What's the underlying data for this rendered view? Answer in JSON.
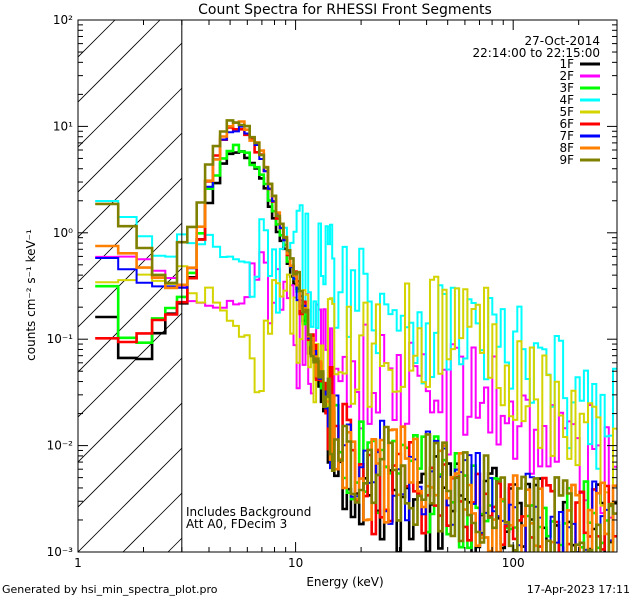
{
  "chart_data": {
    "type": "line",
    "title": "Count Spectra for RHESSI Front Segments",
    "xlabel": "Energy (keV)",
    "ylabel_text": "counts cm⁻² s⁻¹ keV⁻¹",
    "x_scale": "log",
    "y_scale": "log",
    "xlim": [
      1.0,
      300.0
    ],
    "ylim": [
      0.001,
      100.0
    ],
    "x_tick_labels": [
      {
        "value": 1,
        "label": "1"
      },
      {
        "value": 10,
        "label": "10"
      },
      {
        "value": 100,
        "label": "100"
      }
    ],
    "y_tick_labels": [
      {
        "value": 100,
        "label": "10²"
      },
      {
        "value": 10,
        "label": "10¹"
      },
      {
        "value": 1,
        "label": "10⁰"
      },
      {
        "value": 0.1,
        "label": "10⁻¹"
      },
      {
        "value": 0.01,
        "label": "10⁻²"
      },
      {
        "value": 0.001,
        "label": "10⁻³"
      }
    ],
    "hatched_region_max_energy": 3.0,
    "date": "27-Oct-2014",
    "time_range": "22:14:00 to 22:15:00",
    "annotations": [
      "Includes Background",
      "Att A0, FDecim 3"
    ],
    "legend_position": "top-right",
    "series": [
      {
        "name": "1F",
        "color": "#000000",
        "shape": "low",
        "values": [
          [
            1.2,
            0.22
          ],
          [
            1.5,
            0.12
          ],
          [
            1.8,
            0.042
          ],
          [
            2.2,
            0.09
          ],
          [
            2.6,
            0.15
          ],
          [
            3.0,
            0.22
          ],
          [
            3.5,
            0.5
          ],
          [
            4.0,
            2.0
          ],
          [
            4.5,
            4.0
          ],
          [
            5.0,
            5.5
          ],
          [
            5.5,
            5.8
          ],
          [
            6.0,
            5.2
          ],
          [
            7.0,
            3.2
          ],
          [
            8.0,
            1.3
          ],
          [
            10.0,
            0.33
          ],
          [
            12.0,
            0.07
          ],
          [
            15.0,
            0.012
          ],
          [
            20.0,
            0.004
          ],
          [
            30.0,
            0.003
          ],
          [
            50.0,
            0.0025
          ],
          [
            100.0,
            0.002
          ],
          [
            200.0,
            0.0015
          ]
        ]
      },
      {
        "name": "2F",
        "color": "#ff00ff",
        "shape": "flat",
        "values": [
          [
            1.2,
            0.55
          ],
          [
            1.5,
            0.6
          ],
          [
            1.8,
            0.55
          ],
          [
            2.2,
            0.5
          ],
          [
            2.6,
            0.4
          ],
          [
            3.0,
            0.3
          ],
          [
            3.5,
            0.22
          ],
          [
            4.5,
            0.19
          ],
          [
            6.0,
            0.25
          ],
          [
            8.0,
            0.15
          ],
          [
            10.0,
            0.1
          ],
          [
            15.0,
            0.06
          ],
          [
            20.0,
            0.045
          ],
          [
            30.0,
            0.035
          ],
          [
            40.0,
            0.028
          ],
          [
            60.0,
            0.03
          ],
          [
            80.0,
            0.027
          ],
          [
            120.0,
            0.015
          ],
          [
            200.0,
            0.008
          ],
          [
            280.0,
            0.006
          ]
        ]
      },
      {
        "name": "3F",
        "color": "#00ff00",
        "shape": "main",
        "values": [
          [
            1.2,
            0.5
          ],
          [
            1.5,
            0.2
          ],
          [
            1.8,
            0.07
          ],
          [
            2.2,
            0.12
          ],
          [
            2.6,
            0.2
          ],
          [
            3.0,
            0.25
          ],
          [
            3.5,
            0.6
          ],
          [
            4.0,
            2.4
          ],
          [
            4.5,
            4.5
          ],
          [
            5.0,
            6.0
          ],
          [
            5.5,
            6.2
          ],
          [
            6.0,
            5.5
          ],
          [
            7.0,
            3.5
          ],
          [
            8.0,
            1.5
          ],
          [
            10.0,
            0.35
          ],
          [
            12.0,
            0.08
          ],
          [
            15.0,
            0.015
          ],
          [
            20.0,
            0.006
          ],
          [
            30.0,
            0.005
          ],
          [
            50.0,
            0.004
          ],
          [
            100.0,
            0.002
          ],
          [
            200.0,
            0.0015
          ]
        ]
      },
      {
        "name": "4F",
        "color": "#00ffff",
        "shape": "flat",
        "values": [
          [
            1.2,
            1.8
          ],
          [
            1.5,
            2.0
          ],
          [
            1.8,
            1.2
          ],
          [
            2.2,
            0.7
          ],
          [
            2.6,
            0.5
          ],
          [
            3.0,
            0.9
          ],
          [
            3.5,
            0.7
          ],
          [
            4.0,
            1.0
          ],
          [
            4.5,
            0.6
          ],
          [
            6.0,
            0.5
          ],
          [
            8.0,
            0.4
          ],
          [
            10.0,
            0.6
          ],
          [
            12.0,
            0.45
          ],
          [
            15.0,
            0.45
          ],
          [
            20.0,
            0.3
          ],
          [
            30.0,
            0.2
          ],
          [
            40.0,
            0.13
          ],
          [
            60.0,
            0.13
          ],
          [
            80.0,
            0.1
          ],
          [
            120.0,
            0.05
          ],
          [
            200.0,
            0.025
          ],
          [
            280.0,
            0.015
          ]
        ]
      },
      {
        "name": "5F",
        "color": "#d4d400",
        "shape": "flat",
        "values": [
          [
            1.2,
            0.3
          ],
          [
            1.5,
            0.35
          ],
          [
            1.8,
            0.4
          ],
          [
            2.2,
            0.45
          ],
          [
            2.6,
            0.3
          ],
          [
            3.0,
            0.5
          ],
          [
            3.5,
            0.2
          ],
          [
            4.0,
            0.3
          ],
          [
            4.5,
            0.2
          ],
          [
            6.0,
            0.1
          ],
          [
            7.0,
            0.04
          ],
          [
            8.0,
            0.2
          ],
          [
            10.0,
            0.1
          ],
          [
            12.0,
            0.08
          ],
          [
            15.0,
            0.08
          ],
          [
            20.0,
            0.06
          ],
          [
            30.0,
            0.1
          ],
          [
            40.0,
            0.12
          ],
          [
            60.0,
            0.15
          ],
          [
            80.0,
            0.1
          ],
          [
            120.0,
            0.04
          ],
          [
            200.0,
            0.012
          ],
          [
            280.0,
            0.008
          ]
        ]
      },
      {
        "name": "6F",
        "color": "#ff0000",
        "shape": "low",
        "values": [
          [
            1.2,
            0.12
          ],
          [
            1.5,
            0.08
          ],
          [
            1.8,
            0.09
          ],
          [
            2.2,
            0.13
          ],
          [
            2.6,
            0.18
          ],
          [
            3.0,
            0.2
          ],
          [
            3.5,
            0.5
          ],
          [
            4.0,
            2.8
          ],
          [
            4.5,
            6.5
          ],
          [
            5.0,
            9.5
          ],
          [
            5.5,
            10.0
          ],
          [
            6.0,
            9.0
          ],
          [
            7.0,
            5.0
          ],
          [
            8.0,
            1.8
          ],
          [
            10.0,
            0.38
          ],
          [
            12.0,
            0.08
          ],
          [
            15.0,
            0.014
          ],
          [
            20.0,
            0.005
          ],
          [
            30.0,
            0.004
          ],
          [
            50.0,
            0.003
          ],
          [
            100.0,
            0.002
          ],
          [
            200.0,
            0.0015
          ]
        ]
      },
      {
        "name": "7F",
        "color": "#0000ff",
        "shape": "main",
        "values": [
          [
            1.2,
            0.6
          ],
          [
            1.5,
            0.5
          ],
          [
            1.8,
            0.4
          ],
          [
            2.2,
            0.35
          ],
          [
            2.6,
            0.3
          ],
          [
            3.0,
            0.3
          ],
          [
            3.5,
            0.6
          ],
          [
            4.0,
            2.8
          ],
          [
            4.5,
            6.5
          ],
          [
            5.0,
            9.5
          ],
          [
            5.5,
            10.0
          ],
          [
            6.0,
            9.0
          ],
          [
            7.0,
            5.0
          ],
          [
            8.0,
            1.8
          ],
          [
            10.0,
            0.38
          ],
          [
            12.0,
            0.08
          ],
          [
            15.0,
            0.014
          ],
          [
            20.0,
            0.006
          ],
          [
            30.0,
            0.005
          ],
          [
            50.0,
            0.004
          ],
          [
            100.0,
            0.002
          ],
          [
            200.0,
            0.0015
          ]
        ]
      },
      {
        "name": "8F",
        "color": "#ff8000",
        "shape": "main",
        "values": [
          [
            1.2,
            0.7
          ],
          [
            1.5,
            0.7
          ],
          [
            1.8,
            0.6
          ],
          [
            2.2,
            0.4
          ],
          [
            2.6,
            0.3
          ],
          [
            3.0,
            0.35
          ],
          [
            3.5,
            0.6
          ],
          [
            4.0,
            3.0
          ],
          [
            4.5,
            7.0
          ],
          [
            5.0,
            10.0
          ],
          [
            5.5,
            10.5
          ],
          [
            6.0,
            9.5
          ],
          [
            7.0,
            5.5
          ],
          [
            8.0,
            2.0
          ],
          [
            10.0,
            0.4
          ],
          [
            12.0,
            0.08
          ],
          [
            15.0,
            0.015
          ],
          [
            20.0,
            0.006
          ],
          [
            30.0,
            0.005
          ],
          [
            50.0,
            0.004
          ],
          [
            100.0,
            0.002
          ],
          [
            200.0,
            0.0015
          ]
        ]
      },
      {
        "name": "9F",
        "color": "#808000",
        "shape": "main",
        "values": [
          [
            1.2,
            1.9
          ],
          [
            1.5,
            1.6
          ],
          [
            1.8,
            1.0
          ],
          [
            2.2,
            0.5
          ],
          [
            2.6,
            0.3
          ],
          [
            3.0,
            0.8
          ],
          [
            3.5,
            1.2
          ],
          [
            4.0,
            4.0
          ],
          [
            4.5,
            8.0
          ],
          [
            5.0,
            10.5
          ],
          [
            5.5,
            11.0
          ],
          [
            6.0,
            10.0
          ],
          [
            7.0,
            5.5
          ],
          [
            8.0,
            2.0
          ],
          [
            10.0,
            0.4
          ],
          [
            12.0,
            0.08
          ],
          [
            15.0,
            0.015
          ],
          [
            20.0,
            0.006
          ],
          [
            30.0,
            0.005
          ],
          [
            50.0,
            0.004
          ],
          [
            100.0,
            0.002
          ],
          [
            200.0,
            0.0015
          ]
        ]
      }
    ]
  },
  "footer": {
    "generated_by": "Generated by hsi_min_spectra_plot.pro",
    "timestamp": "17-Apr-2023 17:11"
  }
}
